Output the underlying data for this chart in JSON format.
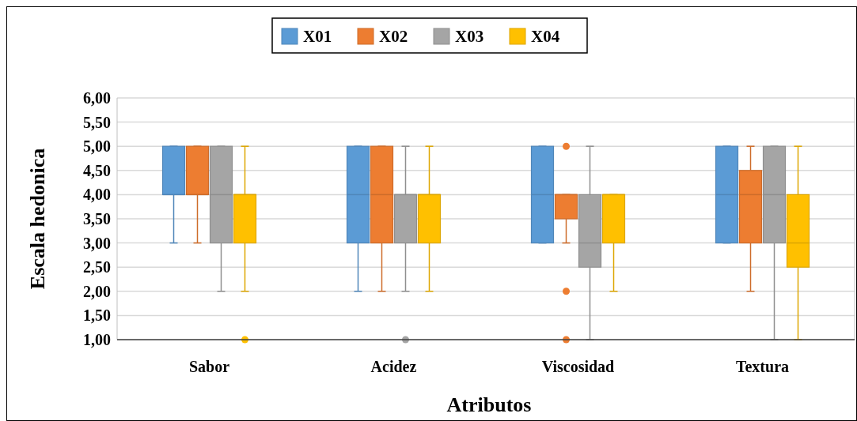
{
  "chart_data": {
    "type": "box",
    "xlabel": "Atributos",
    "ylabel": "Escala hedonica",
    "categories": [
      "Sabor",
      "Acidez",
      "Viscosidad",
      "Textura"
    ],
    "ylim": [
      1,
      6
    ],
    "yticks": [
      {
        "value": 1,
        "label": "1,00"
      },
      {
        "value": 1.5,
        "label": "1,50"
      },
      {
        "value": 2,
        "label": "2,00"
      },
      {
        "value": 2.5,
        "label": "2,50"
      },
      {
        "value": 3,
        "label": "3,00"
      },
      {
        "value": 3.5,
        "label": "3,50"
      },
      {
        "value": 4,
        "label": "4,00"
      },
      {
        "value": 4.5,
        "label": "4,50"
      },
      {
        "value": 5,
        "label": "5,00"
      },
      {
        "value": 5.5,
        "label": "5,50"
      },
      {
        "value": 6,
        "label": "6,00"
      }
    ],
    "grid": "y",
    "legend": "top",
    "series": [
      {
        "name": "X01",
        "color": "#5b9bd5",
        "boxes": [
          {
            "low": 3,
            "q1": 4,
            "median": 4,
            "q3": 5,
            "high": 5
          },
          {
            "low": 2,
            "q1": 3,
            "median": 4,
            "q3": 5,
            "high": 5
          },
          {
            "low": 3,
            "q1": 3,
            "median": 4,
            "q3": 5,
            "high": 5
          },
          {
            "low": 3,
            "q1": 3,
            "median": 4,
            "q3": 5,
            "high": 5
          }
        ]
      },
      {
        "name": "X02",
        "color": "#ed7d31",
        "boxes": [
          {
            "low": 3,
            "q1": 4,
            "median": 4,
            "q3": 5,
            "high": 5
          },
          {
            "low": 2,
            "q1": 3,
            "median": 4,
            "q3": 5,
            "high": 5
          },
          {
            "low": 3,
            "q1": 3.5,
            "median": 4,
            "q3": 4,
            "high": 4,
            "outliers": [
              5,
              2,
              1
            ]
          },
          {
            "low": 2,
            "q1": 3,
            "median": 4,
            "q3": 4.5,
            "high": 5
          }
        ]
      },
      {
        "name": "X03",
        "color": "#a5a5a5",
        "boxes": [
          {
            "low": 2,
            "q1": 3,
            "median": 4,
            "q3": 5,
            "high": 5
          },
          {
            "low": 2,
            "q1": 3,
            "median": 4,
            "q3": 4,
            "high": 5,
            "outliers": [
              1
            ]
          },
          {
            "low": 1,
            "q1": 2.5,
            "median": 3,
            "q3": 4,
            "high": 5
          },
          {
            "low": 1,
            "q1": 3,
            "median": 4,
            "q3": 5,
            "high": 5
          }
        ]
      },
      {
        "name": "X04",
        "color": "#ffc000",
        "boxes": [
          {
            "low": 2,
            "q1": 3,
            "median": 4,
            "q3": 4,
            "high": 5,
            "outliers": [
              1
            ]
          },
          {
            "low": 2,
            "q1": 3,
            "median": 4,
            "q3": 4,
            "high": 5
          },
          {
            "low": 2,
            "q1": 3,
            "median": 4,
            "q3": 4,
            "high": 4
          },
          {
            "low": 1,
            "q1": 2.5,
            "median": 3,
            "q3": 4,
            "high": 5
          }
        ]
      }
    ]
  }
}
